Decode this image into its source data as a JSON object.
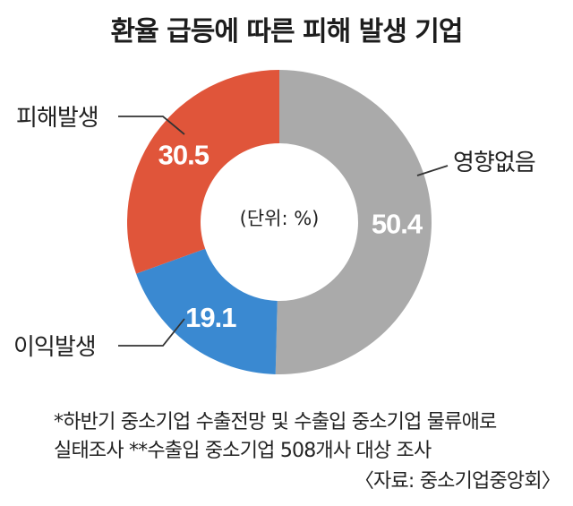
{
  "chart_data": {
    "type": "pie",
    "title": "환율 급등에 따른 피해 발생 기업",
    "center_label": "(단위: %)",
    "slices": [
      {
        "label": "영향없음",
        "value": 50.4,
        "value_label": "50.4",
        "color": "#aaaaaa"
      },
      {
        "label": "이익발생",
        "value": 19.1,
        "value_label": "19.1",
        "color": "#3a89d1"
      },
      {
        "label": "피해발생",
        "value": 30.5,
        "value_label": "30.5",
        "color": "#e0553a"
      }
    ]
  },
  "notes": {
    "line1": "*하반기 중소기업 수출전망 및 수출입 중소기업 물류애로",
    "line2": "실태조사   **수출입 중소기업 508개사 대상 조사"
  },
  "source": "〈자료: 중소기업중앙회〉"
}
